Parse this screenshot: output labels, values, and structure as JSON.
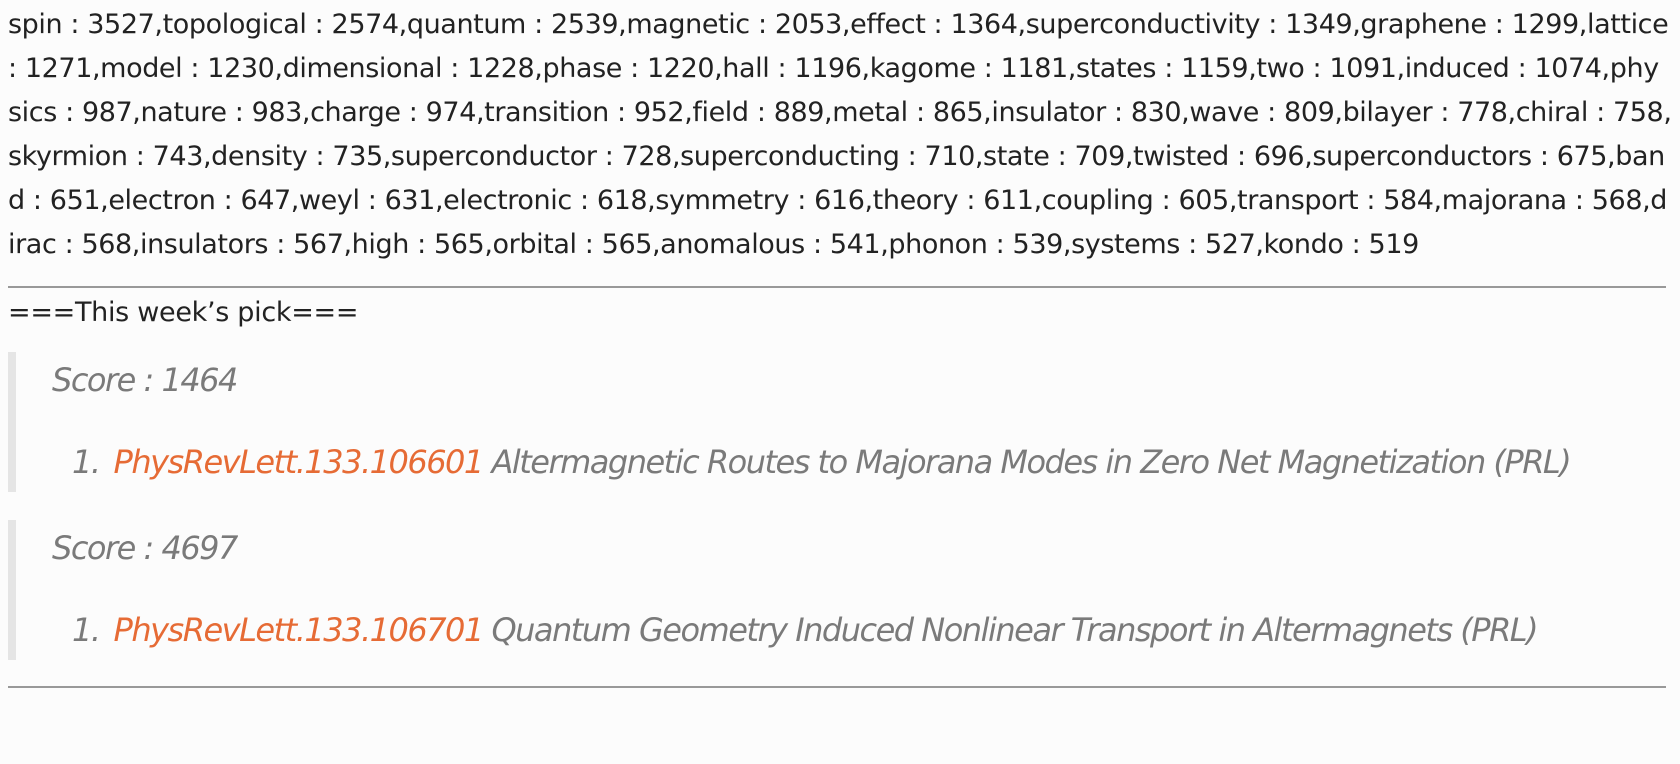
{
  "keywords_text": "spin : 3527,topological : 2574,quantum : 2539,magnetic : 2053,effect : 1364,superconductivity : 1349,graphene : 1299,lattice : 1271,model : 1230,dimensional : 1228,phase : 1220,hall : 1196,kagome : 1181,states : 1159,two : 1091,induced : 1074,physics : 987,nature : 983,charge : 974,transition : 952,field : 889,metal : 865,insulator : 830,wave : 809,bilayer : 778,chiral : 758,skyrmion : 743,density : 735,superconductor : 728,superconducting : 710,state : 709,twisted : 696,superconductors : 675,band : 651,electron : 647,weyl : 631,electronic : 618,symmetry : 616,theory : 611,coupling : 605,transport : 584,majorana : 568,dirac : 568,insulators : 567,high : 565,orbital : 565,anomalous : 541,phonon : 539,systems : 527,kondo : 519",
  "pick_heading": "===This week’s pick===",
  "picks": [
    {
      "score_text": "Score : 1464",
      "number": "1.",
      "link_text": "PhysRevLett.133.106601",
      "title": "Altermagnetic Routes to Majorana Modes in Zero Net Magnetization (PRL)"
    },
    {
      "score_text": "Score : 4697",
      "number": "1.",
      "link_text": "PhysRevLett.133.106701",
      "title": "Quantum Geometry Induced Nonlinear Transport in Altermagnets (PRL)"
    }
  ],
  "colors": {
    "link": "#e66b35",
    "quote_text": "#7a7a7a",
    "quote_border": "#e5e5e5",
    "rule": "#999999"
  }
}
